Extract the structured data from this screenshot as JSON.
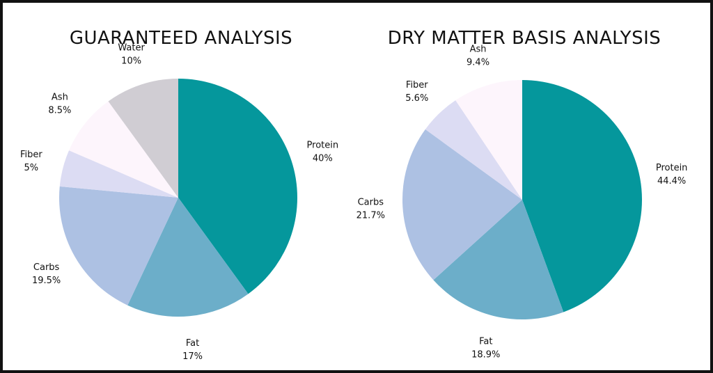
{
  "chart_data": [
    {
      "type": "pie",
      "title": "GUARANTEED ANALYSIS",
      "slices": [
        {
          "label": "Protein",
          "value": 40,
          "display": "40%",
          "color": "#05979c"
        },
        {
          "label": "Fat",
          "value": 17,
          "display": "17%",
          "color": "#6caec9"
        },
        {
          "label": "Carbs",
          "value": 19.5,
          "display": "19.5%",
          "color": "#adc1e3"
        },
        {
          "label": "Fiber",
          "value": 5,
          "display": "5%",
          "color": "#dcdcf3"
        },
        {
          "label": "Ash",
          "value": 8.5,
          "display": "8.5%",
          "color": "#fdf5fc"
        },
        {
          "label": "Water",
          "value": 10,
          "display": "10%",
          "color": "#d0cdd3"
        }
      ],
      "legend": "none"
    },
    {
      "type": "pie",
      "title": "DRY MATTER BASIS ANALYSIS",
      "slices": [
        {
          "label": "Protein",
          "value": 44.4,
          "display": "44.4%",
          "color": "#05979c"
        },
        {
          "label": "Fat",
          "value": 18.9,
          "display": "18.9%",
          "color": "#6caec9"
        },
        {
          "label": "Carbs",
          "value": 21.7,
          "display": "21.7%",
          "color": "#adc1e3"
        },
        {
          "label": "Fiber",
          "value": 5.6,
          "display": "5.6%",
          "color": "#dcdcf3"
        },
        {
          "label": "Ash",
          "value": 9.4,
          "display": "9.4%",
          "color": "#fdf5fc"
        }
      ],
      "legend": "none"
    }
  ]
}
